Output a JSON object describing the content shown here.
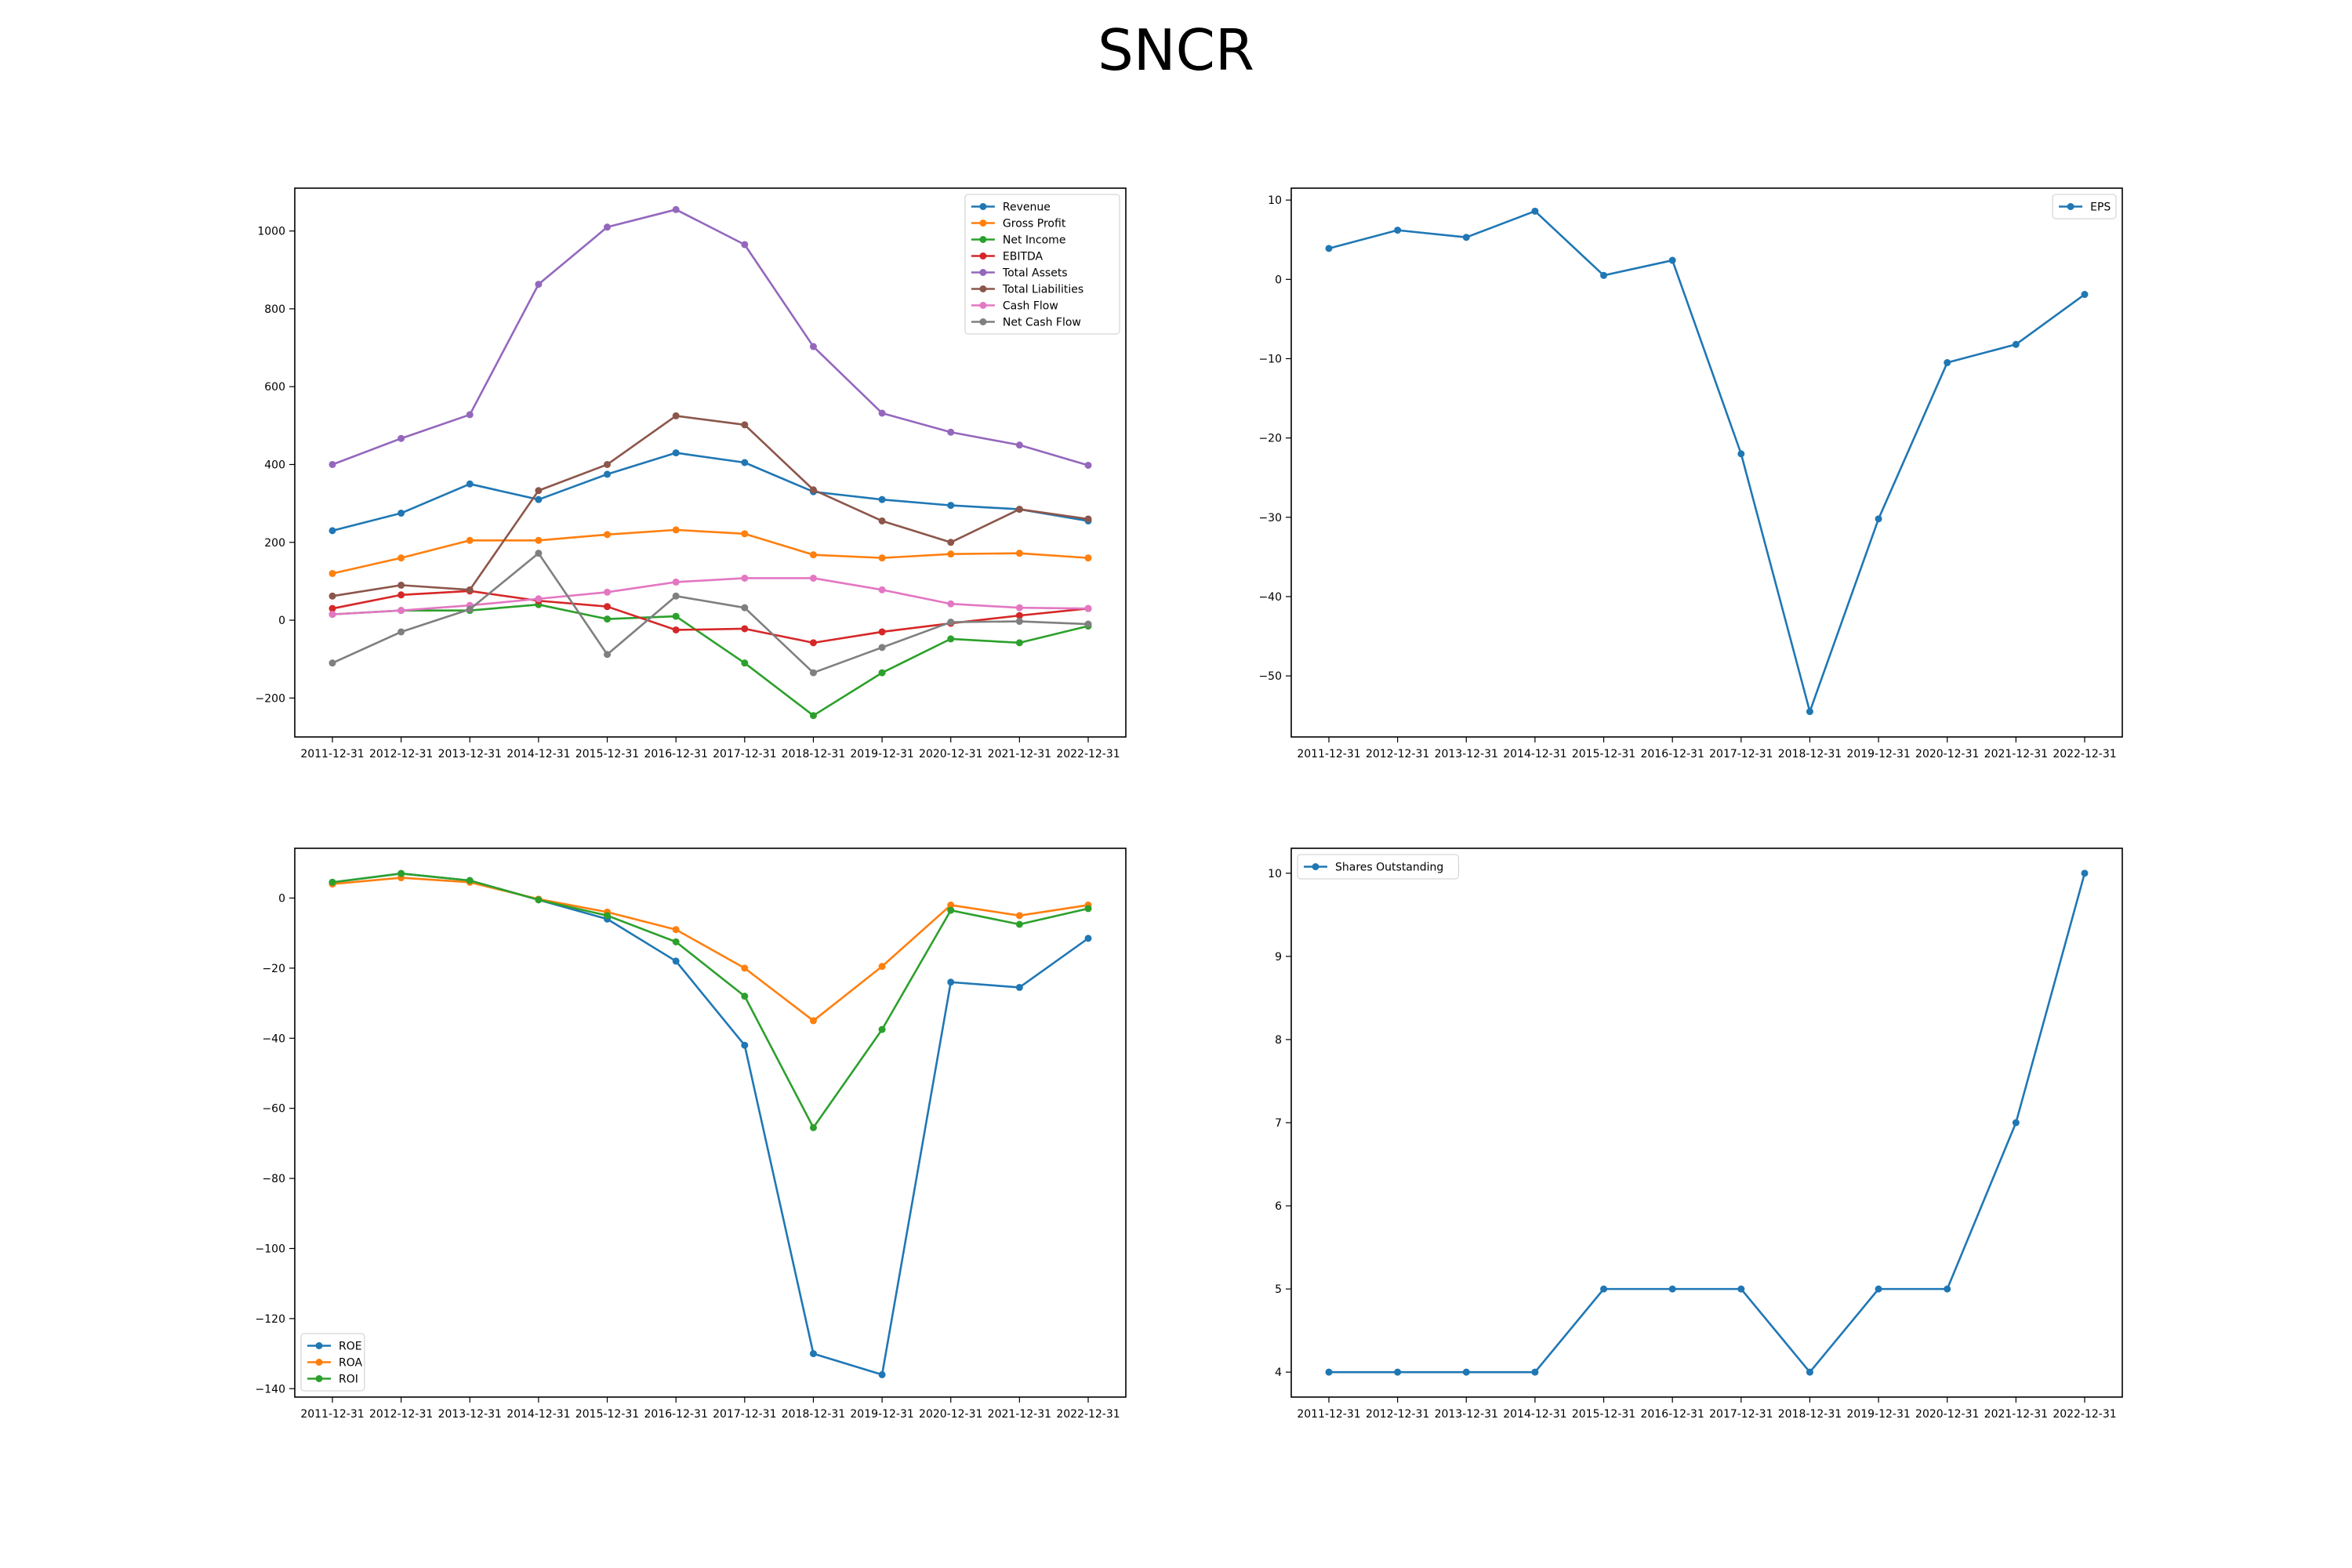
{
  "page_title": "SNCR",
  "chart_data": [
    {
      "type": "line",
      "x": [
        "2011-12-31",
        "2012-12-31",
        "2013-12-31",
        "2014-12-31",
        "2015-12-31",
        "2016-12-31",
        "2017-12-31",
        "2018-12-31",
        "2019-12-31",
        "2020-12-31",
        "2021-12-31",
        "2022-12-31"
      ],
      "ylim": [
        -300,
        1110
      ],
      "yticks": [
        -200,
        0,
        200,
        400,
        600,
        800,
        1000
      ],
      "legend": "top-right",
      "grid": false,
      "series": [
        {
          "name": "Revenue",
          "color": "#1f77b4",
          "values": [
            230,
            275,
            350,
            310,
            375,
            430,
            405,
            330,
            310,
            295,
            285,
            255
          ]
        },
        {
          "name": "Gross Profit",
          "color": "#ff7f0e",
          "values": [
            120,
            160,
            205,
            205,
            220,
            232,
            222,
            168,
            160,
            170,
            172,
            160
          ]
        },
        {
          "name": "Net Income",
          "color": "#2ca02c",
          "values": [
            15,
            25,
            25,
            40,
            3,
            10,
            -110,
            -245,
            -135,
            -48,
            -58,
            -15
          ]
        },
        {
          "name": "EBITDA",
          "color": "#d62728",
          "values": [
            30,
            65,
            75,
            50,
            35,
            -25,
            -22,
            -58,
            -30,
            -8,
            12,
            30
          ]
        },
        {
          "name": "Total Assets",
          "color": "#9467bd",
          "values": [
            400,
            467,
            528,
            863,
            1010,
            1055,
            965,
            703,
            532,
            483,
            450,
            398
          ]
        },
        {
          "name": "Total Liabilities",
          "color": "#8c564b",
          "values": [
            62,
            90,
            78,
            333,
            400,
            525,
            502,
            335,
            255,
            200,
            285,
            260
          ]
        },
        {
          "name": "Cash Flow",
          "color": "#e377c2",
          "values": [
            15,
            25,
            38,
            55,
            72,
            98,
            108,
            108,
            78,
            42,
            32,
            30
          ]
        },
        {
          "name": "Net Cash Flow",
          "color": "#7f7f7f",
          "values": [
            -110,
            -30,
            28,
            172,
            -88,
            62,
            32,
            -135,
            -70,
            -5,
            -3,
            -10
          ]
        }
      ]
    },
    {
      "type": "line",
      "x": [
        "2011-12-31",
        "2012-12-31",
        "2013-12-31",
        "2014-12-31",
        "2015-12-31",
        "2016-12-31",
        "2017-12-31",
        "2018-12-31",
        "2019-12-31",
        "2020-12-31",
        "2021-12-31",
        "2022-12-31"
      ],
      "ylim": [
        -57.7,
        11.5
      ],
      "yticks": [
        -50,
        -40,
        -30,
        -20,
        -10,
        0,
        10
      ],
      "legend": "top-right",
      "grid": false,
      "series": [
        {
          "name": "EPS",
          "color": "#1f77b4",
          "values": [
            3.9,
            6.2,
            5.3,
            8.6,
            0.5,
            2.4,
            -22.0,
            -54.5,
            -30.2,
            -10.5,
            -8.2,
            -1.9
          ]
        }
      ]
    },
    {
      "type": "line",
      "x": [
        "2011-12-31",
        "2012-12-31",
        "2013-12-31",
        "2014-12-31",
        "2015-12-31",
        "2016-12-31",
        "2017-12-31",
        "2018-12-31",
        "2019-12-31",
        "2020-12-31",
        "2021-12-31",
        "2022-12-31"
      ],
      "ylim": [
        -142.4,
        14.2
      ],
      "yticks": [
        -140,
        -120,
        -100,
        -80,
        -60,
        -40,
        -20,
        0
      ],
      "legend": "bottom-left",
      "grid": false,
      "series": [
        {
          "name": "ROE",
          "color": "#1f77b4",
          "values": [
            4.5,
            7.0,
            5.0,
            -0.5,
            -6.0,
            -18.0,
            -42.0,
            -130.0,
            -136.0,
            -24.0,
            -25.5,
            -11.5
          ]
        },
        {
          "name": "ROA",
          "color": "#ff7f0e",
          "values": [
            4.0,
            5.8,
            4.5,
            -0.3,
            -4.0,
            -9.0,
            -20.0,
            -35.0,
            -19.5,
            -2.0,
            -5.0,
            -2.0
          ]
        },
        {
          "name": "ROI",
          "color": "#2ca02c",
          "values": [
            4.5,
            7.0,
            5.0,
            -0.5,
            -5.0,
            -12.5,
            -28.0,
            -65.5,
            -37.5,
            -3.5,
            -7.5,
            -3.0
          ]
        }
      ]
    },
    {
      "type": "line",
      "x": [
        "2011-12-31",
        "2012-12-31",
        "2013-12-31",
        "2014-12-31",
        "2015-12-31",
        "2016-12-31",
        "2017-12-31",
        "2018-12-31",
        "2019-12-31",
        "2020-12-31",
        "2021-12-31",
        "2022-12-31"
      ],
      "ylim": [
        3.7,
        10.3
      ],
      "yticks": [
        4,
        5,
        6,
        7,
        8,
        9,
        10
      ],
      "legend": "top-left",
      "grid": false,
      "series": [
        {
          "name": "Shares Outstanding",
          "color": "#1f77b4",
          "values": [
            4,
            4,
            4,
            4,
            5,
            5,
            5,
            4,
            5,
            5,
            7,
            10
          ]
        }
      ]
    }
  ]
}
